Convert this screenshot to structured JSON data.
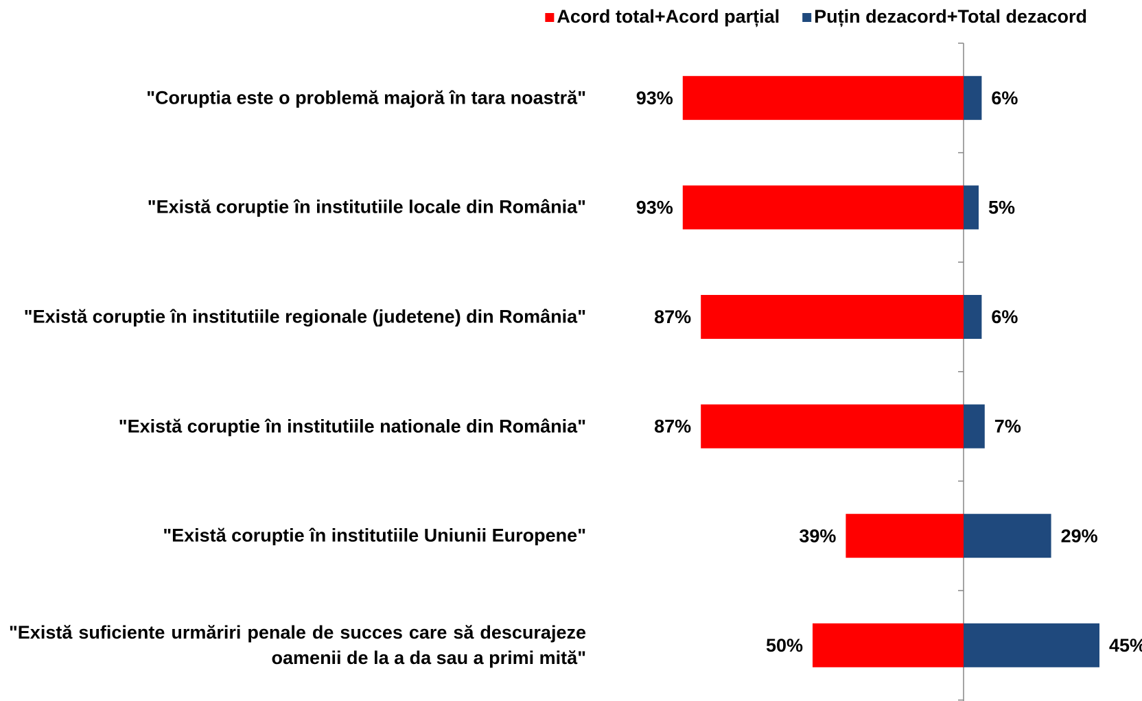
{
  "chart_data": {
    "type": "bar",
    "categories": [
      "\"Coruptia este o problemă majoră în tara noastră\"",
      "\"Există coruptie în institutiile locale din România\"",
      "\"Există coruptie în institutiile regionale (judetene) din România\"",
      "\"Există coruptie în institutiile nationale din România\"",
      "\"Există coruptie în institutiile Uniunii Europene\"",
      "\"Există suficiente urmăriri penale de succes care să descurajeze oamenii de la a da sau a primi mită\""
    ],
    "series": [
      {
        "name": "Acord total+Acord parțial",
        "color": "#ff0000",
        "values": [
          93,
          93,
          87,
          87,
          39,
          50
        ],
        "value_labels": [
          "93%",
          "93%",
          "87%",
          "87%",
          "39%",
          "50%"
        ]
      },
      {
        "name": "Puțin dezacord+Total dezacord",
        "color": "#1f497d",
        "values": [
          6,
          5,
          6,
          7,
          29,
          45
        ],
        "value_labels": [
          "6%",
          "5%",
          "6%",
          "7%",
          "29%",
          "45%"
        ]
      }
    ],
    "legend": "top-right"
  }
}
